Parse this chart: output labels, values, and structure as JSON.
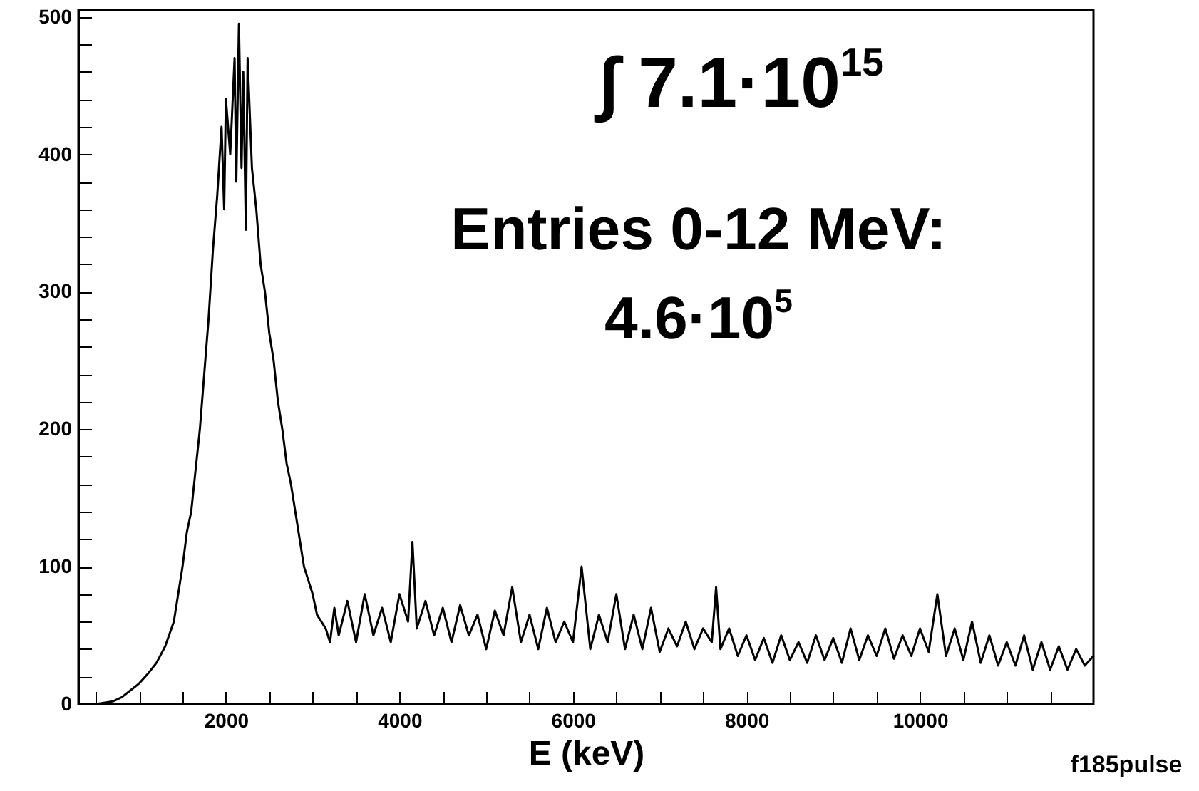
{
  "chart_data": {
    "type": "line",
    "xlabel": "E (keV)",
    "annotations": [
      "∫ 7.1·10$^{15}$",
      "Entries 0-12 MeV:",
      "4.6·10$^{5}$",
      "f185pulse"
    ],
    "x": [
      500,
      700,
      800,
      900,
      1000,
      1100,
      1200,
      1300,
      1400,
      1450,
      1500,
      1550,
      1600,
      1650,
      1700,
      1750,
      1800,
      1850,
      1900,
      1950,
      1980,
      2000,
      2050,
      2100,
      2120,
      2150,
      2180,
      2200,
      2230,
      2250,
      2300,
      2350,
      2400,
      2450,
      2500,
      2550,
      2600,
      2650,
      2700,
      2750,
      2800,
      2850,
      2900,
      2950,
      3000,
      3050,
      3100,
      3150,
      3200,
      3250,
      3300,
      3400,
      3500,
      3600,
      3700,
      3800,
      3900,
      4000,
      4100,
      4150,
      4200,
      4300,
      4400,
      4500,
      4600,
      4700,
      4800,
      4900,
      5000,
      5100,
      5200,
      5300,
      5400,
      5500,
      5600,
      5700,
      5800,
      5900,
      6000,
      6100,
      6200,
      6300,
      6400,
      6500,
      6600,
      6700,
      6800,
      6900,
      7000,
      7100,
      7200,
      7300,
      7400,
      7500,
      7600,
      7650,
      7700,
      7800,
      7900,
      8000,
      8100,
      8200,
      8300,
      8400,
      8500,
      8600,
      8700,
      8800,
      8900,
      9000,
      9100,
      9200,
      9300,
      9400,
      9500,
      9600,
      9700,
      9800,
      9900,
      10000,
      10100,
      10200,
      10300,
      10400,
      10500,
      10600,
      10700,
      10800,
      10900,
      11000,
      11100,
      11200,
      11300,
      11400,
      11500,
      11600,
      11700,
      11800,
      11900,
      12000
    ],
    "series": [
      {
        "color": "#000000",
        "values": [
          0,
          2,
          5,
          10,
          15,
          22,
          30,
          42,
          60,
          80,
          100,
          125,
          140,
          170,
          200,
          240,
          280,
          330,
          370,
          420,
          360,
          440,
          400,
          470,
          380,
          495,
          390,
          460,
          345,
          470,
          390,
          360,
          320,
          300,
          270,
          250,
          220,
          200,
          175,
          160,
          140,
          120,
          100,
          90,
          80,
          65,
          60,
          55,
          45,
          70,
          50,
          75,
          45,
          80,
          50,
          70,
          45,
          80,
          60,
          118,
          55,
          75,
          50,
          70,
          45,
          72,
          50,
          65,
          40,
          68,
          50,
          85,
          45,
          65,
          40,
          70,
          45,
          60,
          45,
          100,
          40,
          65,
          45,
          80,
          40,
          65,
          40,
          70,
          38,
          55,
          42,
          60,
          40,
          55,
          45,
          85,
          40,
          55,
          35,
          50,
          32,
          48,
          30,
          50,
          32,
          45,
          30,
          50,
          32,
          48,
          30,
          55,
          32,
          50,
          35,
          55,
          33,
          50,
          35,
          55,
          38,
          80,
          35,
          55,
          32,
          60,
          30,
          50,
          28,
          45,
          28,
          50,
          25,
          45,
          25,
          42,
          25,
          40,
          28,
          35
        ]
      }
    ],
    "xlim": [
      300,
      12000
    ],
    "ylim": [
      0,
      505
    ],
    "xticks": [
      {
        "value": 500,
        "label": null
      },
      {
        "value": 1000,
        "label": null
      },
      {
        "value": 1500,
        "label": null
      },
      2000,
      {
        "value": 2500,
        "label": null
      },
      {
        "value": 3000,
        "label": null
      },
      {
        "value": 3500,
        "label": null
      },
      4000,
      {
        "value": 4500,
        "label": null
      },
      {
        "value": 5000,
        "label": null
      },
      {
        "value": 5500,
        "label": null
      },
      6000,
      {
        "value": 6500,
        "label": null
      },
      {
        "value": 7000,
        "label": null
      },
      {
        "value": 7500,
        "label": null
      },
      8000,
      {
        "value": 8500,
        "label": null
      },
      {
        "value": 9000,
        "label": null
      },
      {
        "value": 9500,
        "label": null
      },
      10000,
      {
        "value": 10500,
        "label": null
      },
      {
        "value": 11000,
        "label": null
      },
      {
        "value": 11500,
        "label": null
      }
    ],
    "yticks": [
      0,
      {
        "value": 20,
        "label": null
      },
      {
        "value": 40,
        "label": null
      },
      {
        "value": 60,
        "label": null
      },
      {
        "value": 80,
        "label": null
      },
      100,
      {
        "value": 120,
        "label": null
      },
      {
        "value": 140,
        "label": null
      },
      {
        "value": 160,
        "label": null
      },
      {
        "value": 180,
        "label": null
      },
      200,
      {
        "value": 220,
        "label": null
      },
      {
        "value": 240,
        "label": null
      },
      {
        "value": 260,
        "label": null
      },
      {
        "value": 280,
        "label": null
      },
      300,
      {
        "value": 320,
        "label": null
      },
      {
        "value": 340,
        "label": null
      },
      {
        "value": 360,
        "label": null
      },
      {
        "value": 380,
        "label": null
      },
      400,
      {
        "value": 420,
        "label": null
      },
      {
        "value": 440,
        "label": null
      },
      {
        "value": 460,
        "label": null
      },
      {
        "value": 480,
        "label": null
      },
      500
    ]
  }
}
